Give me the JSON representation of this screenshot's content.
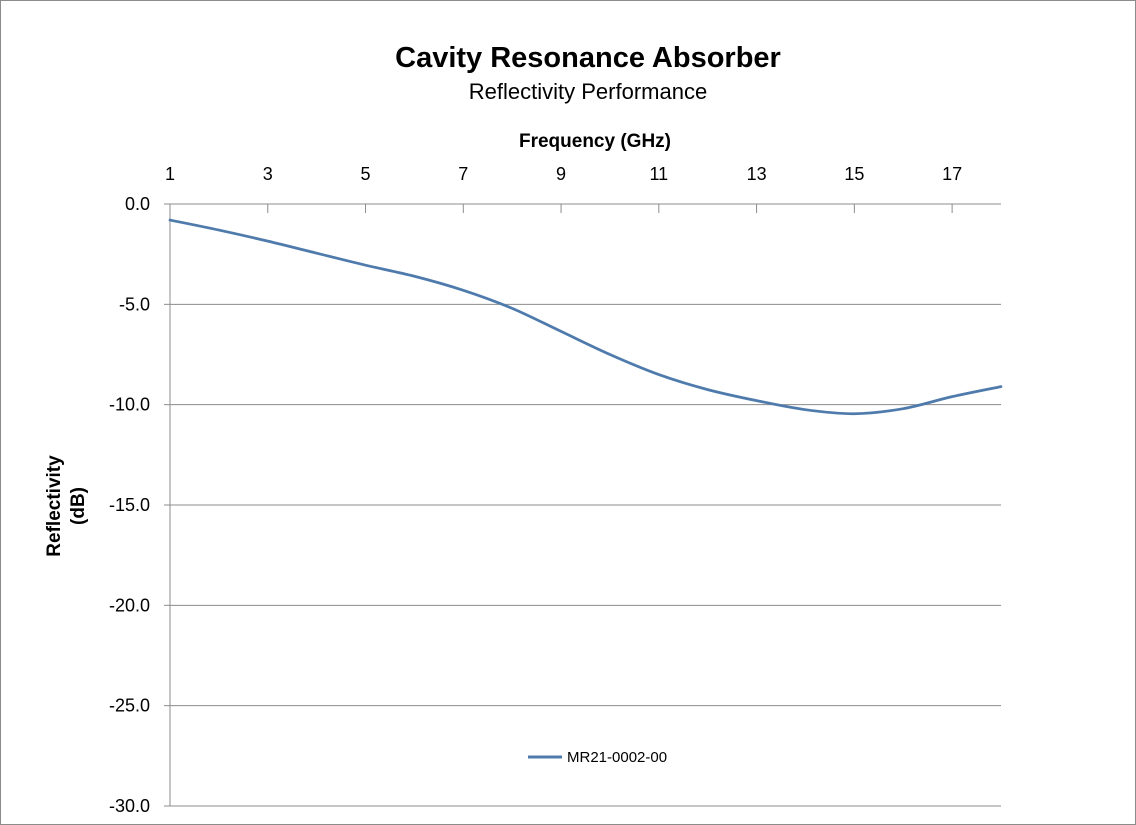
{
  "chart_data": {
    "type": "line",
    "title": "Cavity Resonance Absorber",
    "subtitle": "Reflectivity Performance",
    "xlabel": "Frequency (GHz)",
    "ylabel_lines": [
      "Reflectivity",
      "(dB)"
    ],
    "xlim": [
      1,
      18
    ],
    "ylim": [
      -30,
      0
    ],
    "x_ticks": [
      1,
      3,
      5,
      7,
      9,
      11,
      13,
      15,
      17
    ],
    "y_ticks": [
      0,
      -5,
      -10,
      -15,
      -20,
      -25,
      -30
    ],
    "y_tick_labels": [
      "0.0",
      "-5.0",
      "-10.0",
      "-15.0",
      "-20.0",
      "-25.0",
      "-30.0"
    ],
    "x_axis_position": "top",
    "grid": "horizontal",
    "legend_position": "bottom-center",
    "series": [
      {
        "name": "MR21-0002-00",
        "color": "#4f7bac",
        "x": [
          1,
          2,
          3,
          4,
          5,
          6,
          7,
          8,
          9,
          10,
          11,
          12,
          13,
          14,
          15,
          16,
          17,
          18
        ],
        "y": [
          -0.8,
          -1.3,
          -1.85,
          -2.45,
          -3.05,
          -3.6,
          -4.3,
          -5.2,
          -6.35,
          -7.5,
          -8.5,
          -9.25,
          -9.8,
          -10.25,
          -10.45,
          -10.2,
          -9.6,
          -9.1
        ]
      }
    ]
  }
}
